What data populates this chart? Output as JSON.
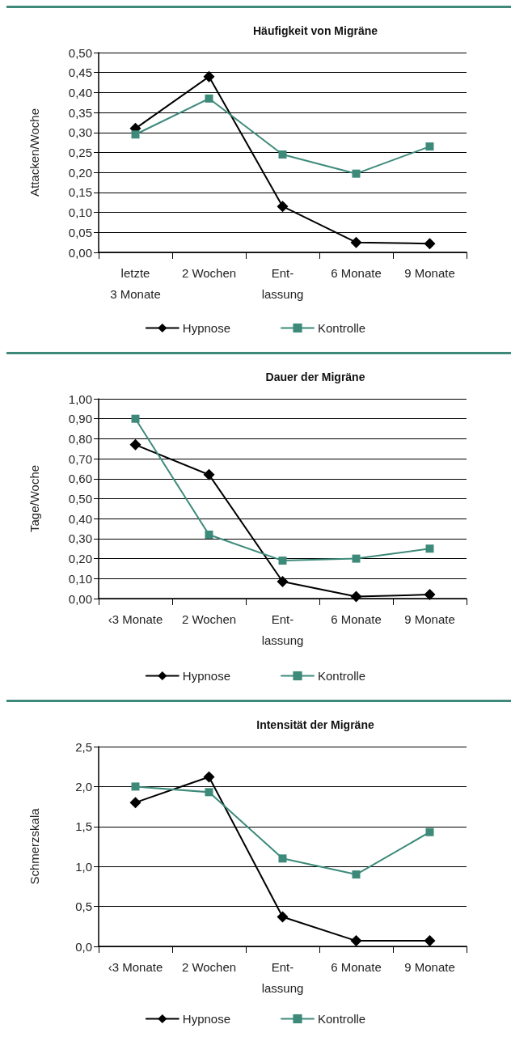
{
  "chart_data": [
    {
      "type": "line",
      "title": "Häufigkeit von Migräne",
      "ylabel": "Attacken/Woche",
      "categories": [
        "letzte\n3 Monate",
        "2 Wochen",
        "Ent-\nlassung",
        "6 Monate",
        "9 Monate"
      ],
      "series": [
        {
          "name": "Hypnose",
          "color": "#000000",
          "marker": "diamond",
          "values": [
            0.31,
            0.44,
            0.115,
            0.025,
            0.022
          ]
        },
        {
          "name": "Kontrolle",
          "color": "#3d8a7a",
          "marker": "square",
          "values": [
            0.295,
            0.385,
            0.245,
            0.197,
            0.265
          ]
        }
      ],
      "ylim": [
        0,
        0.5
      ],
      "yticks": [
        {
          "value": 0,
          "label": "0,00"
        },
        {
          "value": 0.05,
          "label": "0,05"
        },
        {
          "value": 0.1,
          "label": "0,10"
        },
        {
          "value": 0.15,
          "label": "0,15"
        },
        {
          "value": 0.2,
          "label": "0,20"
        },
        {
          "value": 0.25,
          "label": "0,25"
        },
        {
          "value": 0.3,
          "label": "0,30"
        },
        {
          "value": 0.35,
          "label": "0,35"
        },
        {
          "value": 0.4,
          "label": "0,40"
        },
        {
          "value": 0.45,
          "label": "0,45"
        },
        {
          "value": 0.5,
          "label": "0,50"
        }
      ],
      "grid": "y",
      "legend": "bottom",
      "line_style": "solid"
    },
    {
      "type": "line",
      "title": "Dauer der Migräne",
      "ylabel": "Tage/Woche",
      "categories": [
        "‹3 Monate",
        "2 Wochen",
        "Ent-\nlassung",
        "6 Monate",
        "9 Monate"
      ],
      "series": [
        {
          "name": "Hypnose",
          "color": "#000000",
          "marker": "diamond",
          "values": [
            0.77,
            0.62,
            0.085,
            0.01,
            0.02
          ]
        },
        {
          "name": "Kontrolle",
          "color": "#3d8a7a",
          "marker": "square",
          "values": [
            0.9,
            0.32,
            0.19,
            0.2,
            0.25
          ]
        }
      ],
      "ylim": [
        0,
        1
      ],
      "yticks": [
        {
          "value": 0,
          "label": "0,00"
        },
        {
          "value": 0.1,
          "label": "0,10"
        },
        {
          "value": 0.2,
          "label": "0,20"
        },
        {
          "value": 0.3,
          "label": "0,30"
        },
        {
          "value": 0.4,
          "label": "0,40"
        },
        {
          "value": 0.5,
          "label": "0,50"
        },
        {
          "value": 0.6,
          "label": "0,60"
        },
        {
          "value": 0.7,
          "label": "0,70"
        },
        {
          "value": 0.8,
          "label": "0,80"
        },
        {
          "value": 0.9,
          "label": "0,90"
        },
        {
          "value": 1,
          "label": "1,00"
        }
      ],
      "grid": "y",
      "legend": "bottom",
      "line_style": "solid"
    },
    {
      "type": "line",
      "title": "Intensität der Migräne",
      "ylabel": "Schmerzskala",
      "categories": [
        "‹3 Monate",
        "2 Wochen",
        "Ent-\nlassung",
        "6 Monate",
        "9 Monate"
      ],
      "series": [
        {
          "name": "Hypnose",
          "color": "#000000",
          "marker": "diamond",
          "values": [
            1.8,
            2.12,
            0.37,
            0.07,
            0.07
          ]
        },
        {
          "name": "Kontrolle",
          "color": "#3d8a7a",
          "marker": "square",
          "values": [
            2.0,
            1.93,
            1.1,
            0.9,
            1.43
          ]
        }
      ],
      "ylim": [
        0,
        2.5
      ],
      "yticks": [
        {
          "value": 0,
          "label": "0,0"
        },
        {
          "value": 0.5,
          "label": "0,5"
        },
        {
          "value": 1,
          "label": "1,0"
        },
        {
          "value": 1.5,
          "label": "1,5"
        },
        {
          "value": 2,
          "label": "2,0"
        },
        {
          "value": 2.5,
          "label": "2,5"
        }
      ],
      "grid": "y",
      "legend": "bottom",
      "line_style": "solid"
    }
  ]
}
